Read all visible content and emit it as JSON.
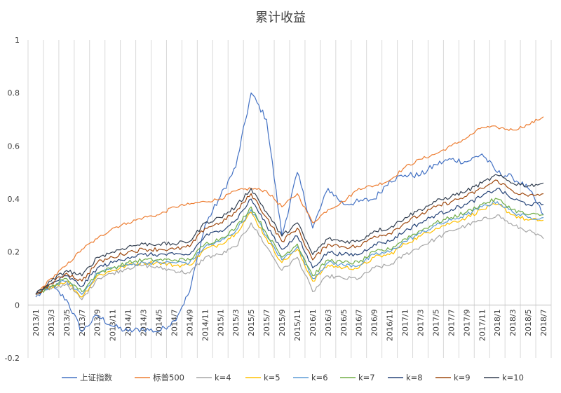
{
  "chart_data": {
    "type": "line",
    "title": "累计收益",
    "xlabel": "",
    "ylabel": "",
    "ylim": [
      -0.2,
      1
    ],
    "yticks": [
      "-0.2",
      "0",
      "0.2",
      "0.4",
      "0.6",
      "0.8",
      "1"
    ],
    "grid": "vertical",
    "legend_position": "bottom",
    "x_labels": [
      "2013/1",
      "2013/3",
      "2013/5",
      "2013/7",
      "2013/9",
      "2013/11",
      "2014/1",
      "2014/3",
      "2014/5",
      "2014/7",
      "2014/9",
      "2014/11",
      "2015/1",
      "2015/3",
      "2015/5",
      "2015/7",
      "2015/9",
      "2015/11",
      "2016/1",
      "2016/3",
      "2016/5",
      "2016/7",
      "2016/9",
      "2016/11",
      "2017/1",
      "2017/3",
      "2017/5",
      "2017/7",
      "2017/9",
      "2017/11",
      "2018/1",
      "2018/3",
      "2018/5",
      "2018/7"
    ],
    "series": [
      {
        "name": "上证指数",
        "color": "#4472c4",
        "noise": 0.012,
        "values": [
          0.03,
          0.07,
          0.02,
          -0.1,
          -0.04,
          -0.08,
          -0.1,
          -0.09,
          -0.1,
          -0.06,
          0.05,
          0.3,
          0.41,
          0.52,
          0.8,
          0.7,
          0.26,
          0.5,
          0.29,
          0.44,
          0.38,
          0.39,
          0.4,
          0.47,
          0.49,
          0.49,
          0.53,
          0.55,
          0.54,
          0.57,
          0.5,
          0.48,
          0.44,
          0.34
        ]
      },
      {
        "name": "标普500",
        "color": "#ed7d31",
        "noise": 0.006,
        "values": [
          0.04,
          0.1,
          0.15,
          0.21,
          0.25,
          0.29,
          0.31,
          0.33,
          0.34,
          0.37,
          0.38,
          0.39,
          0.4,
          0.43,
          0.44,
          0.43,
          0.37,
          0.42,
          0.31,
          0.36,
          0.39,
          0.44,
          0.45,
          0.47,
          0.52,
          0.55,
          0.57,
          0.6,
          0.63,
          0.67,
          0.67,
          0.66,
          0.68,
          0.71
        ]
      },
      {
        "name": "k=4",
        "color": "#a5a5a5",
        "noise": 0.008,
        "values": [
          0.04,
          0.06,
          0.08,
          0.02,
          0.1,
          0.12,
          0.14,
          0.15,
          0.14,
          0.13,
          0.12,
          0.18,
          0.19,
          0.22,
          0.31,
          0.22,
          0.13,
          0.18,
          0.05,
          0.11,
          0.1,
          0.1,
          0.14,
          0.15,
          0.19,
          0.22,
          0.25,
          0.28,
          0.3,
          0.32,
          0.34,
          0.3,
          0.28,
          0.25
        ]
      },
      {
        "name": "k=5",
        "color": "#ffc000",
        "noise": 0.008,
        "values": [
          0.04,
          0.07,
          0.09,
          0.03,
          0.11,
          0.13,
          0.15,
          0.16,
          0.16,
          0.15,
          0.15,
          0.21,
          0.23,
          0.27,
          0.35,
          0.25,
          0.16,
          0.21,
          0.09,
          0.15,
          0.14,
          0.14,
          0.18,
          0.19,
          0.23,
          0.26,
          0.29,
          0.31,
          0.33,
          0.36,
          0.38,
          0.34,
          0.32,
          0.32
        ]
      },
      {
        "name": "k=6",
        "color": "#5b9bd5",
        "noise": 0.008,
        "values": [
          0.04,
          0.07,
          0.09,
          0.04,
          0.12,
          0.14,
          0.15,
          0.16,
          0.16,
          0.16,
          0.16,
          0.22,
          0.24,
          0.28,
          0.36,
          0.26,
          0.17,
          0.22,
          0.1,
          0.16,
          0.15,
          0.15,
          0.19,
          0.2,
          0.24,
          0.27,
          0.3,
          0.32,
          0.34,
          0.37,
          0.39,
          0.35,
          0.33,
          0.33
        ]
      },
      {
        "name": "k=7",
        "color": "#70ad47",
        "noise": 0.008,
        "values": [
          0.04,
          0.07,
          0.1,
          0.05,
          0.12,
          0.14,
          0.16,
          0.17,
          0.17,
          0.17,
          0.17,
          0.23,
          0.25,
          0.29,
          0.37,
          0.27,
          0.18,
          0.23,
          0.11,
          0.17,
          0.16,
          0.16,
          0.2,
          0.21,
          0.25,
          0.28,
          0.31,
          0.33,
          0.35,
          0.38,
          0.4,
          0.36,
          0.34,
          0.34
        ]
      },
      {
        "name": "k=8",
        "color": "#264478",
        "noise": 0.008,
        "values": [
          0.04,
          0.08,
          0.11,
          0.07,
          0.14,
          0.16,
          0.18,
          0.19,
          0.19,
          0.19,
          0.19,
          0.26,
          0.28,
          0.32,
          0.4,
          0.3,
          0.21,
          0.26,
          0.14,
          0.2,
          0.19,
          0.19,
          0.23,
          0.24,
          0.28,
          0.31,
          0.34,
          0.36,
          0.38,
          0.41,
          0.44,
          0.4,
          0.38,
          0.38
        ]
      },
      {
        "name": "k=9",
        "color": "#9e480e",
        "noise": 0.008,
        "values": [
          0.04,
          0.08,
          0.12,
          0.09,
          0.16,
          0.18,
          0.2,
          0.21,
          0.21,
          0.21,
          0.22,
          0.29,
          0.31,
          0.35,
          0.42,
          0.33,
          0.24,
          0.29,
          0.17,
          0.23,
          0.22,
          0.22,
          0.26,
          0.27,
          0.31,
          0.34,
          0.37,
          0.39,
          0.41,
          0.44,
          0.47,
          0.43,
          0.41,
          0.42
        ]
      },
      {
        "name": "k=10",
        "color": "#333f50",
        "noise": 0.008,
        "values": [
          0.04,
          0.09,
          0.13,
          0.11,
          0.18,
          0.2,
          0.22,
          0.23,
          0.23,
          0.23,
          0.24,
          0.31,
          0.33,
          0.37,
          0.44,
          0.35,
          0.26,
          0.31,
          0.19,
          0.25,
          0.24,
          0.24,
          0.28,
          0.29,
          0.33,
          0.36,
          0.39,
          0.41,
          0.43,
          0.46,
          0.49,
          0.46,
          0.45,
          0.46
        ]
      }
    ]
  }
}
